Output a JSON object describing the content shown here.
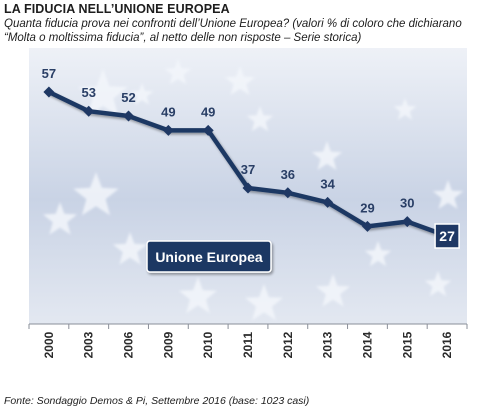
{
  "title": "LA FIDUCIA NELL’UNIONE EUROPEA",
  "subtitle": "Quanta fiducia prova nei confronti dell’Unione Europea? (valori % di coloro che dichiarano “Molta o moltissima fiducia”, al netto delle non risposte – Serie storica)",
  "source": "Fonte: Sondaggio Demos & Pi, Settembre 2016 (base: 1023 casi)",
  "colors": {
    "line": "#1f3864",
    "background_top": "#e9edf5",
    "background_mid": "#c5d0e3",
    "stars": "#f3f6fb"
  },
  "chart_data": {
    "type": "line",
    "categories": [
      "2000",
      "2003",
      "2006",
      "2009",
      "2010",
      "2011",
      "2012",
      "2013",
      "2014",
      "2015",
      "2016"
    ],
    "series": [
      {
        "name": "Unione Europea",
        "values": [
          57,
          53,
          52,
          49,
          49,
          37,
          36,
          34,
          29,
          30,
          27
        ]
      }
    ],
    "data_labels": [
      "57",
      "53",
      "52",
      "49",
      "49",
      "37",
      "36",
      "34",
      "29",
      "30",
      "27"
    ],
    "last_value_highlighted": true,
    "legend": {
      "label": "Unione Europea",
      "placement": "center-left"
    },
    "xlabel": "",
    "ylabel": "",
    "ylim": [
      0,
      65
    ],
    "grid": false,
    "y_axis_visible": false
  }
}
